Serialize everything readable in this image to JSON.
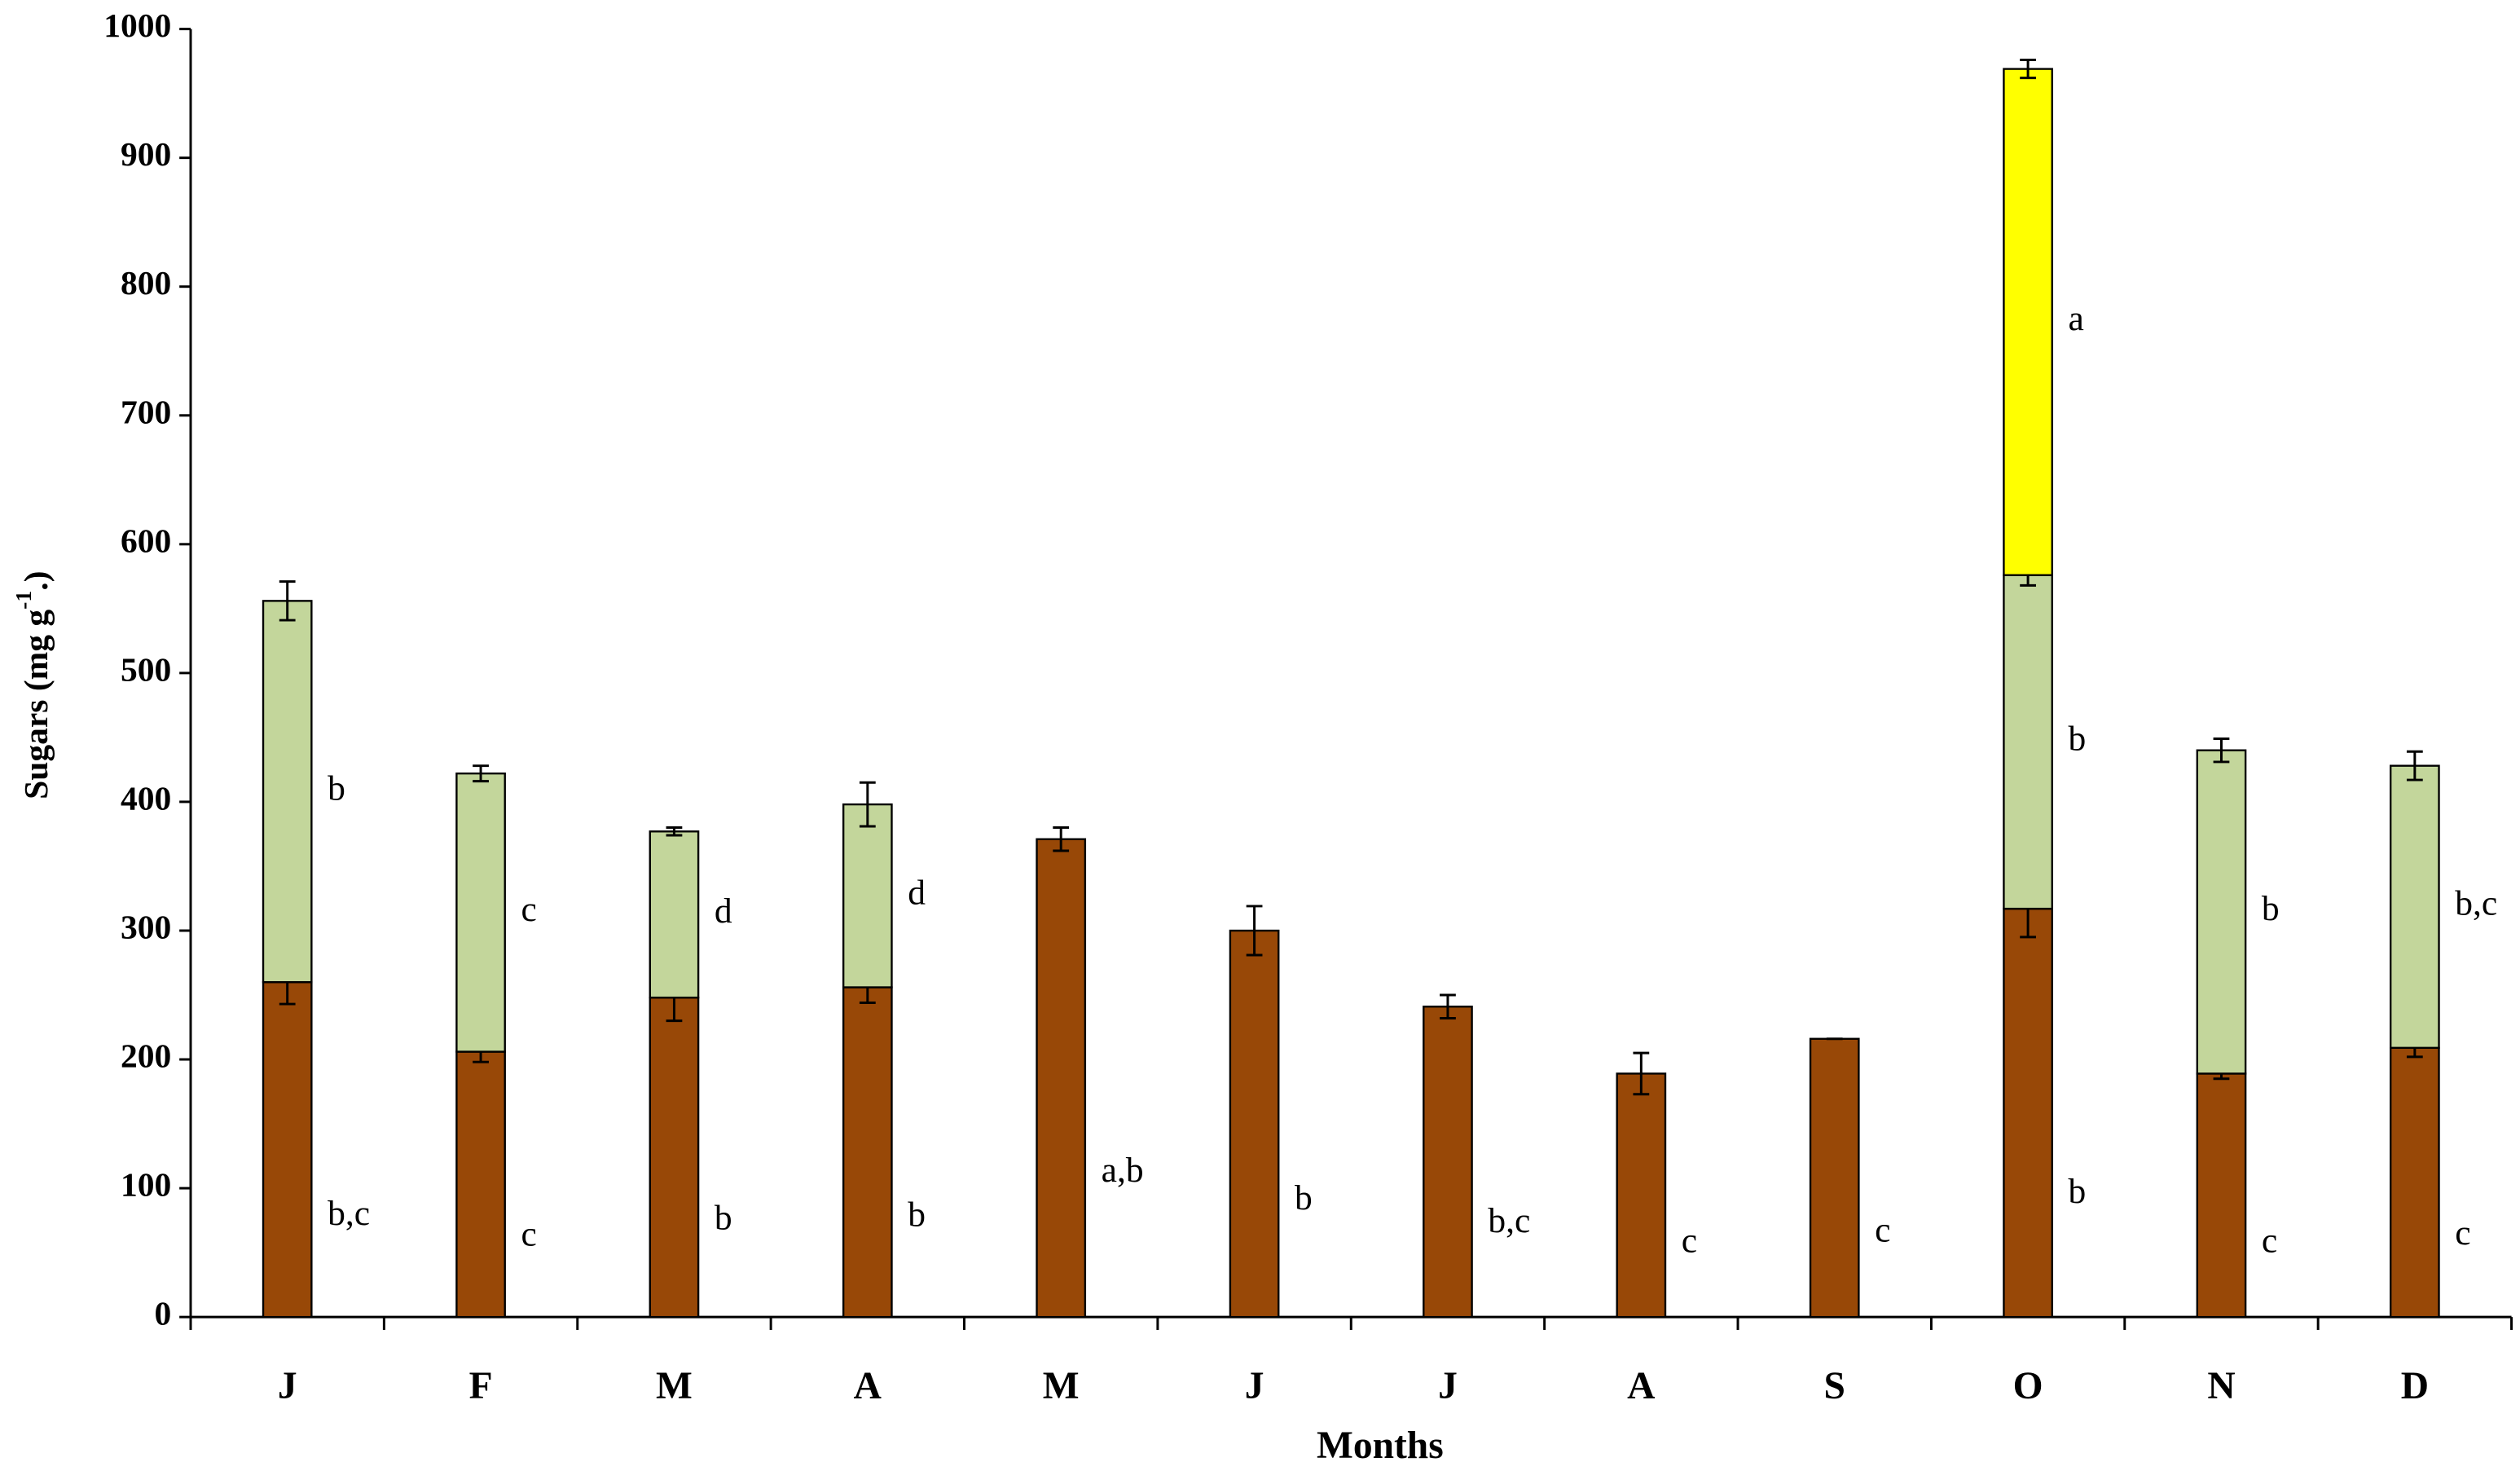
{
  "chart_data": {
    "type": "stacked_bar",
    "categories": [
      "J",
      "F",
      "M",
      "A",
      "M",
      "J",
      "J",
      "A",
      "S",
      "O",
      "N",
      "D"
    ],
    "xlabel": "Months",
    "ylabel": {
      "text": "Sugars (mg g",
      "sup": "-1",
      "end": ".)"
    },
    "ylim": [
      0,
      1000
    ],
    "yticks": [
      0,
      100,
      200,
      300,
      400,
      500,
      600,
      700,
      800,
      900,
      1000
    ],
    "series": [
      {
        "color": "#984807",
        "values": [
          260,
          206,
          248,
          256,
          371,
          300,
          241,
          189,
          216,
          317,
          189,
          209
        ],
        "errors": [
          17,
          8,
          18,
          12,
          9,
          19,
          9,
          16,
          0,
          22,
          4,
          7
        ],
        "annotations": [
          "b,c",
          "c",
          "b",
          "b",
          "a,b",
          "b",
          "b,c",
          "c",
          "c",
          "b",
          "c",
          "c"
        ]
      },
      {
        "color": "#c3d69b",
        "values": [
          296,
          216,
          129,
          142,
          null,
          null,
          null,
          null,
          null,
          259,
          251,
          219
        ],
        "errors": [
          15,
          6,
          3,
          17,
          null,
          null,
          null,
          null,
          null,
          8,
          9,
          11
        ],
        "annotations": [
          "b",
          "c",
          "d",
          "d",
          null,
          null,
          null,
          null,
          null,
          "b",
          "b",
          "b,c"
        ]
      },
      {
        "color": "#ffff00",
        "values": [
          null,
          null,
          null,
          null,
          null,
          null,
          null,
          null,
          null,
          393,
          null,
          null
        ],
        "errors": [
          null,
          null,
          null,
          null,
          null,
          null,
          null,
          null,
          null,
          7,
          null,
          null
        ],
        "annotations": [
          null,
          null,
          null,
          null,
          null,
          null,
          null,
          null,
          null,
          "a",
          null,
          null
        ]
      }
    ]
  }
}
